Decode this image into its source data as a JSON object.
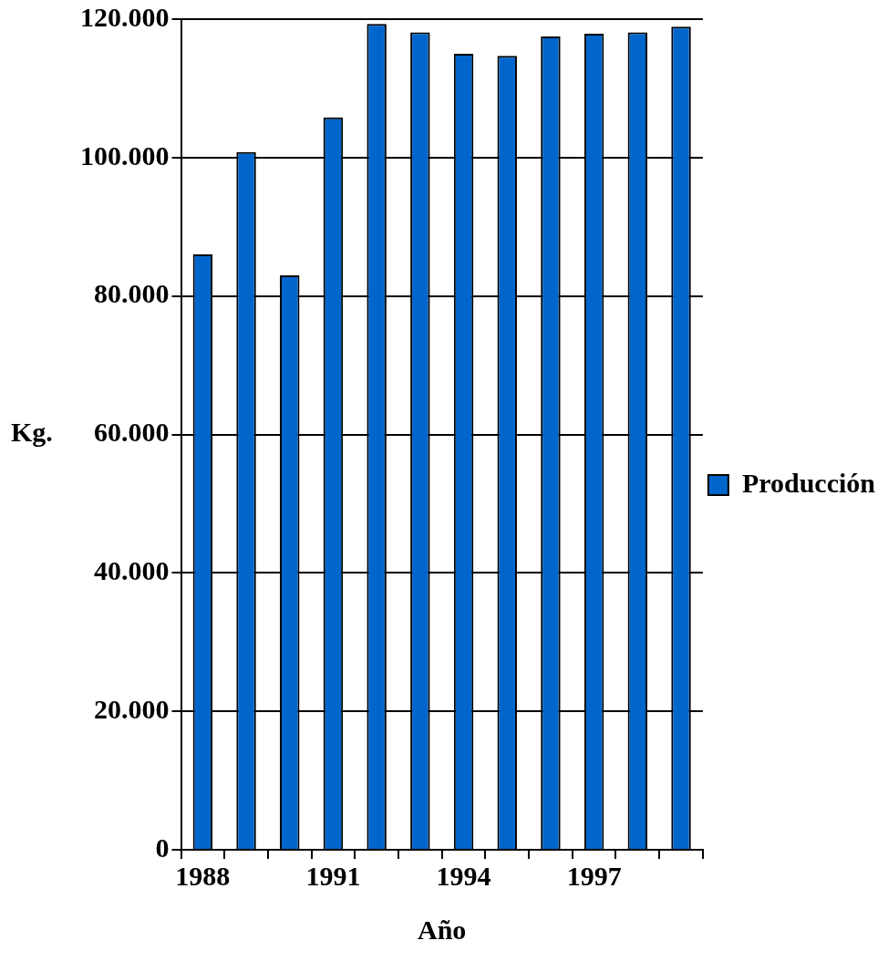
{
  "chart_data": {
    "type": "bar",
    "xlabel": "Año",
    "ylabel": "Kg.",
    "categories": [
      "1988",
      null,
      null,
      "1991",
      null,
      null,
      "1994",
      null,
      null,
      "1997",
      null,
      null
    ],
    "series": [
      {
        "name": "Producción",
        "color": "#0066cc",
        "values": [
          86000,
          100800,
          83000,
          105800,
          119300,
          118100,
          115000,
          114700,
          117500,
          117900,
          118100,
          118900
        ]
      }
    ],
    "ylim": [
      0,
      120000
    ],
    "yticks": [
      {
        "value": 0,
        "label": "0"
      },
      {
        "value": 20000,
        "label": "20.000"
      },
      {
        "value": 40000,
        "label": "40.000"
      },
      {
        "value": 60000,
        "label": "60.000"
      },
      {
        "value": 80000,
        "label": "80.000"
      },
      {
        "value": 100000,
        "label": "100.000"
      },
      {
        "value": 120000,
        "label": "120.000"
      }
    ],
    "grid": "y",
    "legend": "right"
  }
}
